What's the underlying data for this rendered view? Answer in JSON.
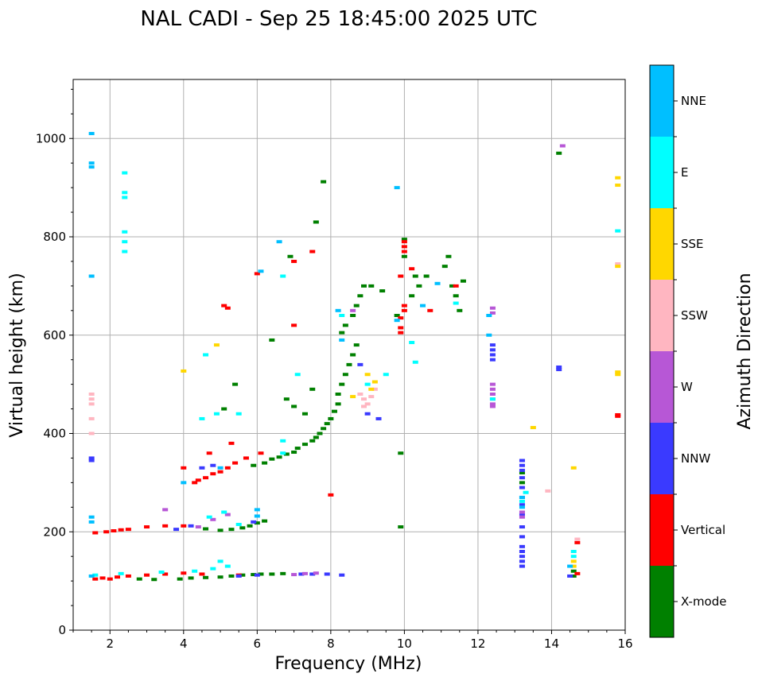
{
  "chart_data": {
    "type": "scatter",
    "title": "NAL CADI - Sep 25 18:45:00 2025 UTC",
    "xlabel": "Frequency (MHz)",
    "ylabel": "Virtual height (km)",
    "xlim": [
      1,
      16
    ],
    "ylim": [
      0,
      1120
    ],
    "xticks": [
      2,
      4,
      6,
      8,
      10,
      12,
      14,
      16
    ],
    "yticks": [
      0,
      200,
      400,
      600,
      800,
      1000
    ],
    "grid": true,
    "colorbar": {
      "label": "Azimuth Direction",
      "categories": [
        {
          "name": "X-mode",
          "color": "#008000"
        },
        {
          "name": "Vertical",
          "color": "#ff0000"
        },
        {
          "name": "NNW",
          "color": "#3a3aff"
        },
        {
          "name": "W",
          "color": "#b757d6"
        },
        {
          "name": "SSW",
          "color": "#ffb6c1"
        },
        {
          "name": "SSE",
          "color": "#ffd700"
        },
        {
          "name": "E",
          "color": "#00ffff"
        },
        {
          "name": "NNE",
          "color": "#00bfff"
        }
      ]
    },
    "series": [
      {
        "name": "X-mode",
        "points": [
          [
            5.0,
            108
          ],
          [
            5.3,
            110
          ],
          [
            5.6,
            112
          ],
          [
            5.9,
            113
          ],
          [
            6.1,
            114
          ],
          [
            6.4,
            114
          ],
          [
            6.7,
            115
          ],
          [
            4.2,
            106
          ],
          [
            4.6,
            107
          ],
          [
            3.9,
            104
          ],
          [
            3.2,
            103
          ],
          [
            2.8,
            104
          ],
          [
            5.6,
            208
          ],
          [
            5.8,
            212
          ],
          [
            6.0,
            218
          ],
          [
            6.2,
            222
          ],
          [
            5.3,
            205
          ],
          [
            5.0,
            203
          ],
          [
            4.6,
            206
          ],
          [
            5.9,
            335
          ],
          [
            6.2,
            340
          ],
          [
            6.4,
            348
          ],
          [
            6.6,
            352
          ],
          [
            6.8,
            358
          ],
          [
            7.0,
            362
          ],
          [
            7.1,
            370
          ],
          [
            7.3,
            378
          ],
          [
            7.5,
            385
          ],
          [
            7.6,
            392
          ],
          [
            7.7,
            400
          ],
          [
            7.8,
            410
          ],
          [
            7.9,
            420
          ],
          [
            8.0,
            430
          ],
          [
            8.1,
            445
          ],
          [
            8.2,
            460
          ],
          [
            8.2,
            480
          ],
          [
            8.3,
            500
          ],
          [
            8.4,
            520
          ],
          [
            8.5,
            540
          ],
          [
            8.6,
            560
          ],
          [
            8.7,
            580
          ],
          [
            8.3,
            605
          ],
          [
            8.4,
            620
          ],
          [
            8.6,
            640
          ],
          [
            8.7,
            660
          ],
          [
            8.8,
            680
          ],
          [
            8.9,
            700
          ],
          [
            6.8,
            470
          ],
          [
            7.0,
            455
          ],
          [
            7.3,
            440
          ],
          [
            7.5,
            490
          ],
          [
            6.4,
            590
          ],
          [
            6.9,
            760
          ],
          [
            7.6,
            830
          ],
          [
            7.8,
            912
          ],
          [
            5.4,
            500
          ],
          [
            5.1,
            450
          ],
          [
            10.3,
            720
          ],
          [
            10.4,
            700
          ],
          [
            10.6,
            720
          ],
          [
            11.1,
            740
          ],
          [
            11.2,
            760
          ],
          [
            11.3,
            700
          ],
          [
            11.4,
            680
          ],
          [
            11.6,
            710
          ],
          [
            11.5,
            650
          ],
          [
            9.4,
            690
          ],
          [
            9.1,
            700
          ],
          [
            9.8,
            640
          ],
          [
            10.2,
            680
          ],
          [
            10.0,
            760
          ],
          [
            10.0,
            795
          ],
          [
            9.9,
            360
          ],
          [
            9.9,
            210
          ],
          [
            13.2,
            320
          ],
          [
            13.2,
            300
          ],
          [
            14.2,
            970
          ],
          [
            14.6,
            120
          ],
          [
            14.6,
            110
          ]
        ]
      },
      {
        "name": "Vertical",
        "points": [
          [
            1.6,
            104
          ],
          [
            1.8,
            106
          ],
          [
            2.0,
            104
          ],
          [
            2.2,
            108
          ],
          [
            2.5,
            110
          ],
          [
            3.0,
            112
          ],
          [
            3.5,
            114
          ],
          [
            4.0,
            116
          ],
          [
            4.5,
            114
          ],
          [
            5.5,
            112
          ],
          [
            1.6,
            198
          ],
          [
            1.9,
            200
          ],
          [
            2.1,
            202
          ],
          [
            2.3,
            204
          ],
          [
            2.5,
            205
          ],
          [
            3.0,
            210
          ],
          [
            3.5,
            212
          ],
          [
            4.0,
            212
          ],
          [
            4.3,
            300
          ],
          [
            4.4,
            305
          ],
          [
            4.6,
            310
          ],
          [
            4.8,
            318
          ],
          [
            5.0,
            322
          ],
          [
            5.2,
            330
          ],
          [
            5.4,
            340
          ],
          [
            5.7,
            350
          ],
          [
            6.1,
            360
          ],
          [
            4.0,
            330
          ],
          [
            4.7,
            360
          ],
          [
            5.3,
            380
          ],
          [
            5.1,
            660
          ],
          [
            5.2,
            655
          ],
          [
            6.0,
            725
          ],
          [
            7.0,
            750
          ],
          [
            7.5,
            770
          ],
          [
            7.0,
            620
          ],
          [
            8.0,
            275
          ],
          [
            10.0,
            790
          ],
          [
            10.0,
            780
          ],
          [
            10.0,
            770
          ],
          [
            9.9,
            635
          ],
          [
            9.9,
            615
          ],
          [
            9.9,
            605
          ],
          [
            10.0,
            660
          ],
          [
            10.0,
            650
          ],
          [
            9.9,
            720
          ],
          [
            10.2,
            735
          ],
          [
            10.7,
            650
          ],
          [
            11.4,
            700
          ],
          [
            14.7,
            178
          ],
          [
            14.7,
            115
          ],
          [
            15.8,
            438
          ],
          [
            15.8,
            435
          ]
        ]
      },
      {
        "name": "NNW",
        "points": [
          [
            5.5,
            110
          ],
          [
            6.0,
            112
          ],
          [
            7.2,
            114
          ],
          [
            7.5,
            114
          ],
          [
            7.9,
            114
          ],
          [
            8.3,
            112
          ],
          [
            3.8,
            205
          ],
          [
            4.2,
            212
          ],
          [
            5.9,
            220
          ],
          [
            1.5,
            350
          ],
          [
            1.5,
            345
          ],
          [
            4.5,
            330
          ],
          [
            4.8,
            335
          ],
          [
            9.0,
            440
          ],
          [
            9.3,
            430
          ],
          [
            8.8,
            540
          ],
          [
            12.4,
            580
          ],
          [
            12.4,
            570
          ],
          [
            12.4,
            560
          ],
          [
            12.4,
            550
          ],
          [
            13.2,
            345
          ],
          [
            13.2,
            335
          ],
          [
            13.2,
            325
          ],
          [
            13.2,
            310
          ],
          [
            13.2,
            290
          ],
          [
            13.2,
            270
          ],
          [
            13.2,
            255
          ],
          [
            13.2,
            235
          ],
          [
            13.2,
            210
          ],
          [
            13.2,
            190
          ],
          [
            13.2,
            170
          ],
          [
            13.2,
            160
          ],
          [
            13.2,
            150
          ],
          [
            13.2,
            140
          ],
          [
            13.2,
            130
          ],
          [
            14.2,
            535
          ],
          [
            14.2,
            530
          ],
          [
            14.5,
            110
          ]
        ]
      },
      {
        "name": "W",
        "points": [
          [
            7.0,
            113
          ],
          [
            7.3,
            115
          ],
          [
            7.6,
            116
          ],
          [
            3.5,
            245
          ],
          [
            4.4,
            210
          ],
          [
            4.8,
            225
          ],
          [
            5.2,
            235
          ],
          [
            8.6,
            650
          ],
          [
            12.4,
            500
          ],
          [
            12.4,
            490
          ],
          [
            12.4,
            480
          ],
          [
            12.4,
            470
          ],
          [
            12.4,
            460
          ],
          [
            12.4,
            455
          ],
          [
            12.4,
            655
          ],
          [
            12.4,
            645
          ],
          [
            13.2,
            240
          ],
          [
            13.2,
            230
          ],
          [
            14.3,
            985
          ]
        ]
      },
      {
        "name": "SSW",
        "points": [
          [
            1.5,
            480
          ],
          [
            1.5,
            470
          ],
          [
            1.5,
            460
          ],
          [
            1.5,
            430
          ],
          [
            1.5,
            400
          ],
          [
            8.8,
            480
          ],
          [
            8.9,
            470
          ],
          [
            9.0,
            460
          ],
          [
            9.1,
            475
          ],
          [
            9.2,
            490
          ],
          [
            8.9,
            455
          ],
          [
            13.9,
            283
          ],
          [
            14.7,
            185
          ],
          [
            15.8,
            745
          ]
        ]
      },
      {
        "name": "SSE",
        "points": [
          [
            4.0,
            527
          ],
          [
            4.9,
            580
          ],
          [
            8.6,
            475
          ],
          [
            9.1,
            490
          ],
          [
            9.2,
            505
          ],
          [
            9.0,
            520
          ],
          [
            13.5,
            412
          ],
          [
            14.6,
            330
          ],
          [
            14.6,
            140
          ],
          [
            14.6,
            130
          ],
          [
            15.8,
            525
          ],
          [
            15.8,
            520
          ],
          [
            15.8,
            920
          ],
          [
            15.8,
            905
          ],
          [
            15.8,
            740
          ]
        ]
      },
      {
        "name": "E",
        "points": [
          [
            2.4,
            930
          ],
          [
            2.4,
            890
          ],
          [
            2.4,
            880
          ],
          [
            2.4,
            810
          ],
          [
            2.4,
            790
          ],
          [
            2.4,
            770
          ],
          [
            1.6,
            112
          ],
          [
            2.3,
            115
          ],
          [
            3.4,
            118
          ],
          [
            4.3,
            120
          ],
          [
            4.8,
            125
          ],
          [
            5.2,
            130
          ],
          [
            5.0,
            140
          ],
          [
            4.7,
            230
          ],
          [
            5.1,
            240
          ],
          [
            5.5,
            215
          ],
          [
            6.7,
            360
          ],
          [
            6.7,
            385
          ],
          [
            4.5,
            430
          ],
          [
            4.9,
            440
          ],
          [
            5.5,
            440
          ],
          [
            4.6,
            560
          ],
          [
            6.7,
            720
          ],
          [
            7.1,
            520
          ],
          [
            8.3,
            640
          ],
          [
            9.0,
            500
          ],
          [
            9.5,
            520
          ],
          [
            10.2,
            585
          ],
          [
            10.3,
            545
          ],
          [
            11.4,
            665
          ],
          [
            12.4,
            470
          ],
          [
            13.2,
            262
          ],
          [
            13.3,
            280
          ],
          [
            14.6,
            160
          ],
          [
            14.6,
            150
          ],
          [
            15.8,
            812
          ]
        ]
      },
      {
        "name": "NNE",
        "points": [
          [
            1.5,
            1010
          ],
          [
            1.5,
            950
          ],
          [
            1.5,
            942
          ],
          [
            1.5,
            720
          ],
          [
            1.5,
            230
          ],
          [
            1.5,
            220
          ],
          [
            1.5,
            110
          ],
          [
            4.0,
            300
          ],
          [
            5.0,
            330
          ],
          [
            6.0,
            232
          ],
          [
            6.0,
            245
          ],
          [
            6.6,
            790
          ],
          [
            6.1,
            730
          ],
          [
            8.3,
            590
          ],
          [
            8.2,
            650
          ],
          [
            9.8,
            900
          ],
          [
            9.8,
            630
          ],
          [
            10.5,
            660
          ],
          [
            10.9,
            705
          ],
          [
            12.3,
            600
          ],
          [
            12.3,
            640
          ],
          [
            13.2,
            270
          ],
          [
            13.2,
            250
          ],
          [
            14.5,
            130
          ]
        ]
      }
    ]
  }
}
